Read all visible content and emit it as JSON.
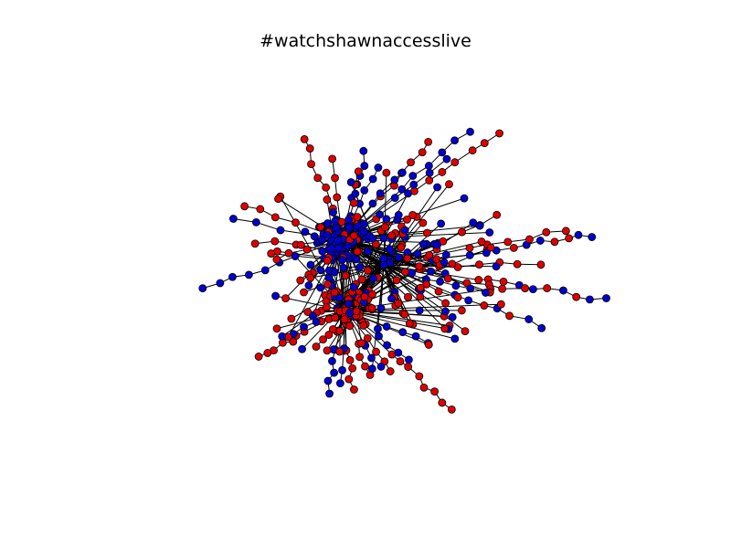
{
  "title": "#watchshawnaccesslive",
  "colors": {
    "background": "#ffffff",
    "node_blue": "#0000cc",
    "node_red": "#dd0000",
    "edge": "#000000",
    "node_stroke": "#000000"
  },
  "graph": {
    "type": "network",
    "node_colors_present": [
      "blue",
      "red"
    ],
    "hubs": [
      "blue-dense-cluster",
      "red-dense-cluster"
    ]
  }
}
